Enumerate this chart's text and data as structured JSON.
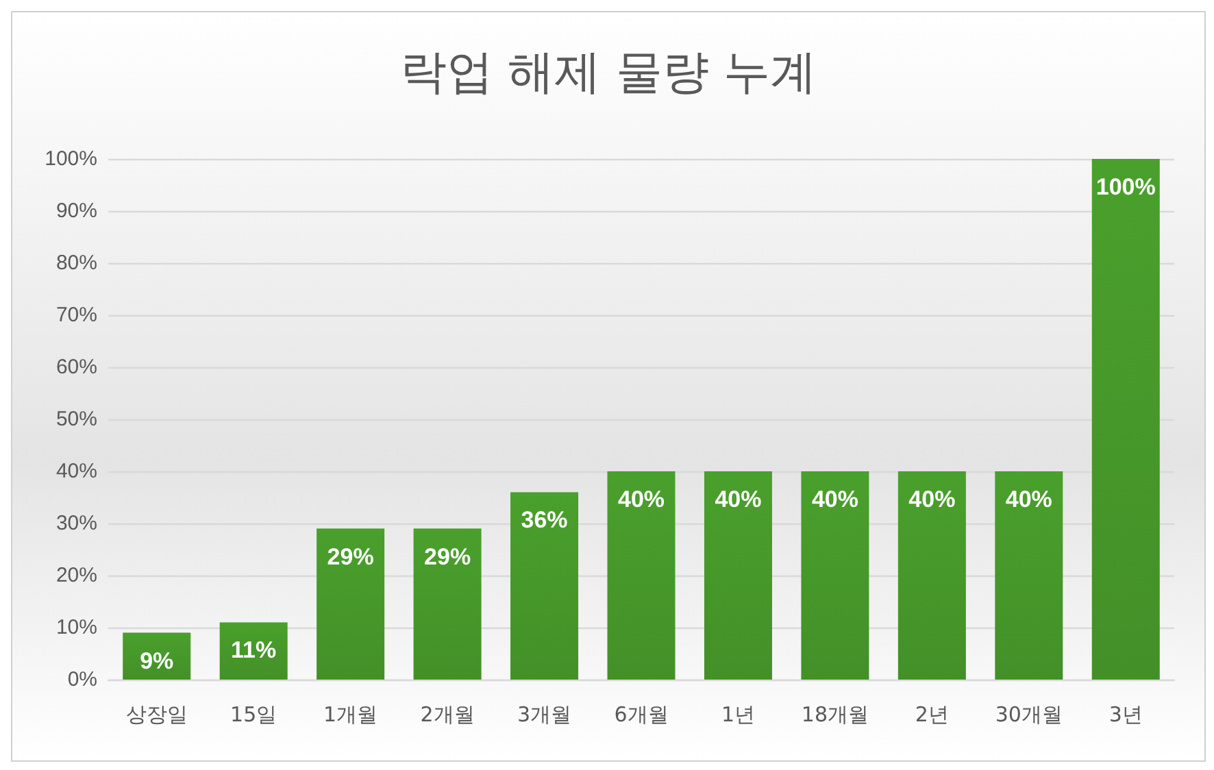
{
  "chart_data": {
    "type": "bar",
    "title": "락업 해제 물량 누계",
    "categories": [
      "상장일",
      "15일",
      "1개월",
      "2개월",
      "3개월",
      "6개월",
      "1년",
      "18개월",
      "2년",
      "30개월",
      "3년"
    ],
    "values": [
      9,
      11,
      29,
      29,
      36,
      40,
      40,
      40,
      40,
      40,
      100
    ],
    "value_labels": [
      "9%",
      "11%",
      "29%",
      "29%",
      "36%",
      "40%",
      "40%",
      "40%",
      "40%",
      "40%",
      "100%"
    ],
    "color": "#4aa02c",
    "ylim": [
      0,
      100
    ],
    "yticks": [
      {
        "value": 0,
        "label": "0%"
      },
      {
        "value": 10,
        "label": "10%"
      },
      {
        "value": 20,
        "label": "20%"
      },
      {
        "value": 30,
        "label": "30%"
      },
      {
        "value": 40,
        "label": "40%"
      },
      {
        "value": 50,
        "label": "50%"
      },
      {
        "value": 60,
        "label": "60%"
      },
      {
        "value": 70,
        "label": "70%"
      },
      {
        "value": 80,
        "label": "80%"
      },
      {
        "value": 90,
        "label": "90%"
      },
      {
        "value": 100,
        "label": "100%"
      }
    ],
    "grid": true
  }
}
